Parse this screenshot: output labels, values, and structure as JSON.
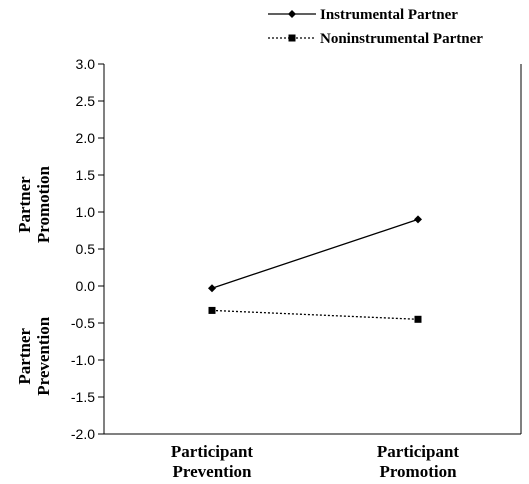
{
  "chart_data": {
    "type": "line",
    "categories": [
      "Participant Prevention",
      "Participant Promotion"
    ],
    "category_lines": [
      [
        "Participant",
        "Prevention"
      ],
      [
        "Participant",
        "Promotion"
      ]
    ],
    "ylim": [
      -2.0,
      3.0
    ],
    "yticks": [
      "3.0",
      "2.5",
      "2.0",
      "1.5",
      "1.0",
      "0.5",
      "0.0",
      "-0.5",
      "-1.0",
      "-1.5",
      "-2.0"
    ],
    "y_labels": [
      {
        "lines": [
          "Partner",
          "Promotion"
        ]
      },
      {
        "lines": [
          "Partner",
          "Prevention"
        ]
      }
    ],
    "legend_position": "top-right",
    "grid": false,
    "series": [
      {
        "name": "Instrumental Partner",
        "values": [
          -0.03,
          0.9
        ],
        "marker": "diamond",
        "line_style": "solid",
        "color": "#000000"
      },
      {
        "name": "Noninstrumental Partner",
        "values": [
          -0.33,
          -0.45
        ],
        "marker": "square",
        "line_style": "dotted",
        "color": "#000000"
      }
    ]
  }
}
